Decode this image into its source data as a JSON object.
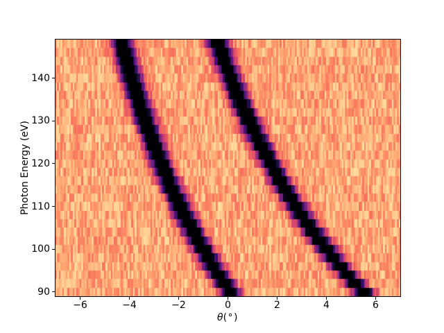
{
  "chart_data": {
    "type": "heatmap",
    "xlabel": "θ(°)",
    "xlabel_parts": {
      "symbol": "θ",
      "units": "(°)"
    },
    "ylabel": "Photon Energy (eV)",
    "xlim": [
      -7,
      7
    ],
    "ylim": [
      89,
      149
    ],
    "xticks": [
      {
        "value": -6,
        "label": "−6"
      },
      {
        "value": -4,
        "label": "−4"
      },
      {
        "value": -2,
        "label": "−2"
      },
      {
        "value": 0,
        "label": "0"
      },
      {
        "value": 2,
        "label": "2"
      },
      {
        "value": 4,
        "label": "4"
      },
      {
        "value": 6,
        "label": "6"
      }
    ],
    "yticks": [
      {
        "value": 90,
        "label": "90"
      },
      {
        "value": 100,
        "label": "100"
      },
      {
        "value": 110,
        "label": "110"
      },
      {
        "value": 120,
        "label": "120"
      },
      {
        "value": 130,
        "label": "130"
      },
      {
        "value": 140,
        "label": "140"
      }
    ],
    "grid": false,
    "legend": null,
    "colormap": "magma_r",
    "colormap_stops_low_to_high": [
      "#000004",
      "#140e36",
      "#3b0f70",
      "#641a80",
      "#8c2981",
      "#b73779",
      "#de4968",
      "#f7705c",
      "#fe9f6d",
      "#fec98d",
      "#fcfdbf"
    ],
    "n_theta_columns": 200,
    "theta_range_deg": [
      -7,
      7
    ],
    "background_noise_range": [
      0.06,
      0.3
    ],
    "noise_seed": 3,
    "energies_eV": [
      90,
      92,
      94,
      96,
      98,
      100,
      102,
      104,
      106,
      108,
      110,
      112,
      114,
      116,
      118,
      120,
      122,
      124,
      126,
      128,
      130,
      132,
      134,
      136,
      138,
      140,
      142,
      144,
      146,
      148
    ],
    "bands": [
      {
        "name": "left-band",
        "amplitude": 1.15,
        "sigma_deg": 0.28,
        "centers_theta_deg": [
          0.1,
          -0.14,
          -0.38,
          -0.6,
          -0.81,
          -1.02,
          -1.22,
          -1.41,
          -1.59,
          -1.77,
          -1.94,
          -2.1,
          -2.26,
          -2.41,
          -2.56,
          -2.7,
          -2.84,
          -2.98,
          -3.1,
          -3.23,
          -3.35,
          -3.47,
          -3.58,
          -3.69,
          -3.8,
          -3.91,
          -4.01,
          -4.11,
          -4.2,
          -4.3
        ]
      },
      {
        "name": "right-band",
        "amplitude": 1.15,
        "sigma_deg": 0.28,
        "centers_theta_deg": [
          5.5,
          5.17,
          4.85,
          4.55,
          4.27,
          3.99,
          3.72,
          3.47,
          3.22,
          2.99,
          2.76,
          2.54,
          2.33,
          2.12,
          1.92,
          1.73,
          1.55,
          1.37,
          1.19,
          1.03,
          0.86,
          0.71,
          0.55,
          0.4,
          0.26,
          0.12,
          -0.02,
          -0.15,
          -0.28,
          -0.4
        ]
      }
    ]
  }
}
